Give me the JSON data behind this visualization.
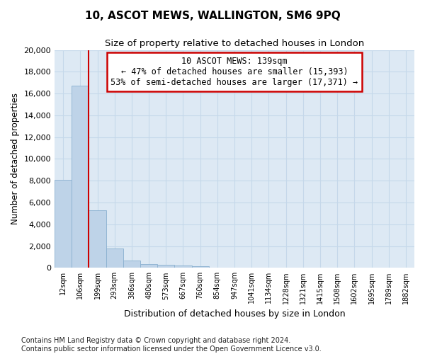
{
  "title": "10, ASCOT MEWS, WALLINGTON, SM6 9PQ",
  "subtitle": "Size of property relative to detached houses in London",
  "xlabel": "Distribution of detached houses by size in London",
  "ylabel": "Number of detached properties",
  "footnote1": "Contains HM Land Registry data © Crown copyright and database right 2024.",
  "footnote2": "Contains public sector information licensed under the Open Government Licence v3.0.",
  "bar_color": "#bed3e8",
  "bar_edge_color": "#8ab0d0",
  "grid_color": "#c5d8ea",
  "background_color": "#dde9f4",
  "annotation_line0": "10 ASCOT MEWS: 139sqm",
  "annotation_line1": "← 47% of detached houses are smaller (15,393)",
  "annotation_line2": "53% of semi-detached houses are larger (17,371) →",
  "annotation_box_color": "#ffffff",
  "annotation_border_color": "#cc0000",
  "vline_color": "#cc0000",
  "vline_x": 1.47,
  "categories": [
    "12sqm",
    "106sqm",
    "199sqm",
    "293sqm",
    "386sqm",
    "480sqm",
    "573sqm",
    "667sqm",
    "760sqm",
    "854sqm",
    "947sqm",
    "1041sqm",
    "1134sqm",
    "1228sqm",
    "1321sqm",
    "1415sqm",
    "1508sqm",
    "1602sqm",
    "1695sqm",
    "1789sqm",
    "1882sqm"
  ],
  "values": [
    8100,
    16700,
    5300,
    1750,
    700,
    350,
    280,
    200,
    170,
    0,
    0,
    0,
    0,
    0,
    0,
    0,
    0,
    0,
    0,
    0,
    0
  ],
  "ylim": [
    0,
    20000
  ],
  "yticks": [
    0,
    2000,
    4000,
    6000,
    8000,
    10000,
    12000,
    14000,
    16000,
    18000,
    20000
  ]
}
